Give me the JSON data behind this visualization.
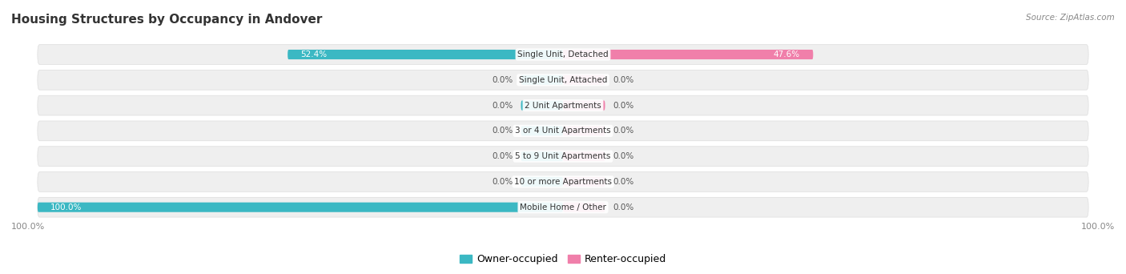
{
  "title": "Housing Structures by Occupancy in Andover",
  "source": "Source: ZipAtlas.com",
  "categories": [
    "Single Unit, Detached",
    "Single Unit, Attached",
    "2 Unit Apartments",
    "3 or 4 Unit Apartments",
    "5 to 9 Unit Apartments",
    "10 or more Apartments",
    "Mobile Home / Other"
  ],
  "owner_values": [
    52.4,
    0.0,
    0.0,
    0.0,
    0.0,
    0.0,
    100.0
  ],
  "renter_values": [
    47.6,
    0.0,
    0.0,
    0.0,
    0.0,
    0.0,
    0.0
  ],
  "owner_color": "#3BB8C3",
  "renter_color": "#F07FAA",
  "row_bg_color": "#EFEFEF",
  "row_border_color": "#DDDDDD",
  "label_color": "#333333",
  "title_color": "#333333",
  "source_color": "#888888",
  "value_color_inside": "#FFFFFF",
  "value_color_outside": "#555555",
  "max_val": 100.0,
  "stub_val": 8.0,
  "legend_owner": "Owner-occupied",
  "legend_renter": "Renter-occupied",
  "bottom_left_label": "100.0%",
  "bottom_right_label": "100.0%"
}
